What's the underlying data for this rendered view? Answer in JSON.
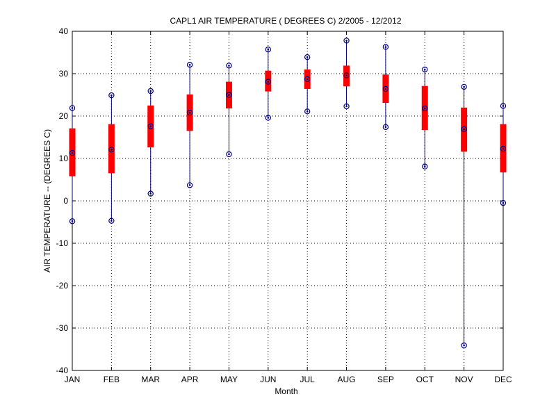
{
  "chart_data": {
    "type": "box",
    "title": "CAPL1  AIR TEMPERATURE ( DEGREES C) 2/2005 - 12/2012",
    "xlabel": "Month",
    "ylabel": "AIR TEMPERATURE -- (DEGREES C)",
    "ylim": [
      -40,
      40
    ],
    "yticks": [
      -40,
      -30,
      -20,
      -10,
      0,
      10,
      20,
      30,
      40
    ],
    "grid": true,
    "categories": [
      "JAN",
      "FEB",
      "MAR",
      "APR",
      "MAY",
      "JUN",
      "JUL",
      "AUG",
      "SEP",
      "OCT",
      "NOV",
      "DEC"
    ],
    "series": [
      {
        "min": [
          -4.8,
          -4.7,
          1.7,
          3.7,
          11.0,
          19.6,
          21.1,
          22.3,
          17.4,
          8.1,
          -34.1,
          -0.5
        ],
        "q1": [
          5.8,
          6.5,
          12.6,
          16.5,
          21.8,
          25.8,
          26.4,
          27.0,
          23.1,
          16.7,
          11.6,
          6.7
        ],
        "median": [
          11.3,
          12.1,
          17.6,
          20.8,
          25.0,
          28.1,
          28.7,
          29.6,
          26.4,
          21.8,
          16.9,
          12.3
        ],
        "q3": [
          17.1,
          18.1,
          22.5,
          25.1,
          28.1,
          30.7,
          31.0,
          31.9,
          29.8,
          27.1,
          22.0,
          18.1
        ],
        "max": [
          21.9,
          24.9,
          25.9,
          32.1,
          31.9,
          35.7,
          33.9,
          37.8,
          36.3,
          31.0,
          26.9,
          22.4
        ]
      }
    ],
    "colors": {
      "box": "#ff0000",
      "whisker": "#000080",
      "marker": "#000080"
    }
  }
}
